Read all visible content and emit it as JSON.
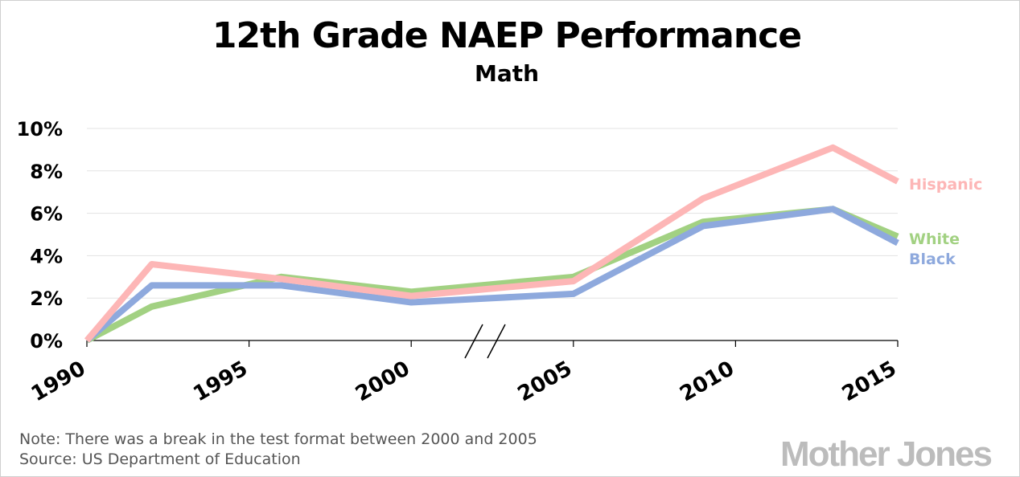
{
  "chart_data": {
    "type": "line",
    "title": "12th Grade NAEP Performance",
    "subtitle": "Math",
    "xlabel": "",
    "ylabel": "",
    "xlim": [
      1990,
      2015
    ],
    "ylim": [
      0,
      10
    ],
    "yticks": [
      "0%",
      "2%",
      "4%",
      "6%",
      "8%",
      "10%"
    ],
    "yticks_values": [
      0,
      2,
      4,
      6,
      8,
      10
    ],
    "xticks": [
      "1990",
      "1995",
      "2000",
      "2005",
      "2010",
      "2015"
    ],
    "xticks_values": [
      1990,
      1995,
      2000,
      2005,
      2010,
      2015
    ],
    "axis_break_between": [
      2000,
      2005
    ],
    "grid": true,
    "series": [
      {
        "name": "White",
        "color": "#a2d182",
        "x": [
          1990,
          1992,
          1996,
          2000,
          2005,
          2009,
          2013,
          2015
        ],
        "values": [
          0,
          1.6,
          3.0,
          2.3,
          3.0,
          5.6,
          6.2,
          4.9
        ]
      },
      {
        "name": "Black",
        "color": "#8ea9dd",
        "x": [
          1990,
          1992,
          1996,
          2000,
          2005,
          2009,
          2013,
          2015
        ],
        "values": [
          0,
          2.6,
          2.6,
          1.8,
          2.2,
          5.4,
          6.2,
          4.6
        ]
      },
      {
        "name": "Hispanic",
        "color": "#fdb6b6",
        "x": [
          1990,
          1992,
          1996,
          2000,
          2005,
          2009,
          2013,
          2015
        ],
        "values": [
          0,
          3.6,
          2.9,
          2.1,
          2.8,
          6.7,
          9.1,
          7.5
        ]
      }
    ]
  },
  "footer": {
    "note": "Note: There was a break in the test format between 2000 and 2005",
    "source": "Source: US Department of Education",
    "logo": "Mother Jones"
  }
}
